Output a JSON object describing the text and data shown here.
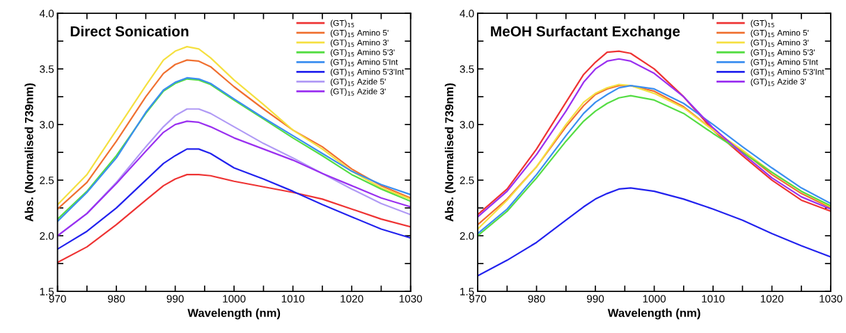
{
  "chart_data": [
    {
      "type": "line",
      "title": "Direct Sonication",
      "xlabel": "Wavelength (nm)",
      "ylabel": "Abs. (Normalised 739nm)",
      "xlim": [
        970,
        1030
      ],
      "ylim": [
        1.5,
        4.0
      ],
      "xticks": [
        970,
        {
          "value": 975,
          "label": null
        },
        980,
        {
          "value": 985,
          "label": null
        },
        990,
        {
          "value": 995,
          "label": null
        },
        1000,
        {
          "value": 1005,
          "label": null
        },
        1010,
        {
          "value": 1015,
          "label": null
        },
        1020,
        {
          "value": 1025,
          "label": null
        },
        1030
      ],
      "yticks": [
        {
          "value": 1.5,
          "label": "1.5"
        },
        {
          "value": 1.75,
          "label": null
        },
        {
          "value": 2.0,
          "label": "2.0"
        },
        {
          "value": 2.25,
          "label": null
        },
        {
          "value": 2.5,
          "label": "2.5"
        },
        {
          "value": 2.75,
          "label": null
        },
        {
          "value": 3.0,
          "label": "3.0"
        },
        {
          "value": 3.25,
          "label": null
        },
        {
          "value": 3.5,
          "label": "3.5"
        },
        {
          "value": 3.75,
          "label": null
        },
        {
          "value": 4.0,
          "label": "4.0"
        }
      ],
      "grid": false,
      "legend": "top right",
      "marker": "none",
      "line_style": "solid",
      "x": [
        970,
        975,
        980,
        985,
        988,
        990,
        992,
        994,
        996,
        1000,
        1005,
        1010,
        1015,
        1020,
        1025,
        1030
      ],
      "series": [
        {
          "name": "(GT)$_{15}$",
          "color": "#ee3333",
          "values": [
            1.76,
            1.9,
            2.1,
            2.32,
            2.45,
            2.51,
            2.55,
            2.55,
            2.54,
            2.49,
            2.44,
            2.39,
            2.33,
            2.24,
            2.15,
            2.08
          ]
        },
        {
          "name": "(GT)$_{15}$ Amino 5'",
          "color": "#f07030",
          "values": [
            2.24,
            2.48,
            2.85,
            3.25,
            3.46,
            3.54,
            3.58,
            3.57,
            3.52,
            3.34,
            3.14,
            2.95,
            2.8,
            2.6,
            2.45,
            2.34
          ]
        },
        {
          "name": "(GT)$_{15}$ Amino 3'",
          "color": "#f5e040",
          "values": [
            2.28,
            2.55,
            2.95,
            3.35,
            3.58,
            3.66,
            3.7,
            3.68,
            3.6,
            3.4,
            3.18,
            2.95,
            2.78,
            2.58,
            2.43,
            2.33
          ]
        },
        {
          "name": "(GT)$_{15}$ Amino 5'3'",
          "color": "#55dd44",
          "values": [
            2.15,
            2.4,
            2.72,
            3.1,
            3.3,
            3.37,
            3.41,
            3.4,
            3.36,
            3.22,
            3.05,
            2.88,
            2.72,
            2.55,
            2.42,
            2.31
          ]
        },
        {
          "name": "(GT)$_{15}$ Amino 5'Int",
          "color": "#3a8ef0",
          "values": [
            2.13,
            2.39,
            2.7,
            3.11,
            3.31,
            3.38,
            3.42,
            3.41,
            3.37,
            3.23,
            3.06,
            2.9,
            2.74,
            2.58,
            2.46,
            2.37
          ]
        },
        {
          "name": "(GT)$_{15}$ Amino 5'3'Int",
          "color": "#2222ee",
          "values": [
            1.88,
            2.04,
            2.25,
            2.5,
            2.65,
            2.72,
            2.78,
            2.78,
            2.74,
            2.61,
            2.51,
            2.4,
            2.28,
            2.17,
            2.06,
            1.98
          ]
        },
        {
          "name": "(GT)$_{15}$ Azide 5'",
          "color": "#b09af5",
          "values": [
            2.0,
            2.2,
            2.48,
            2.8,
            2.98,
            3.08,
            3.14,
            3.14,
            3.1,
            2.98,
            2.83,
            2.7,
            2.56,
            2.42,
            2.29,
            2.19
          ]
        },
        {
          "name": "(GT)$_{15}$ Azide 3'",
          "color": "#9a30f0",
          "values": [
            2.0,
            2.2,
            2.47,
            2.76,
            2.93,
            3.0,
            3.03,
            3.02,
            2.98,
            2.88,
            2.78,
            2.68,
            2.56,
            2.45,
            2.34,
            2.26
          ]
        }
      ]
    },
    {
      "type": "line",
      "title": "MeOH Surfactant Exchange",
      "xlabel": "Wavelength (nm)",
      "ylabel": "Abs. (Normalised 739nm)",
      "xlim": [
        970,
        1030
      ],
      "ylim": [
        1.5,
        4.0
      ],
      "xticks": [
        970,
        {
          "value": 975,
          "label": null
        },
        980,
        {
          "value": 985,
          "label": null
        },
        990,
        {
          "value": 995,
          "label": null
        },
        1000,
        {
          "value": 1005,
          "label": null
        },
        1010,
        {
          "value": 1015,
          "label": null
        },
        1020,
        {
          "value": 1025,
          "label": null
        },
        1030
      ],
      "yticks": [
        {
          "value": 1.5,
          "label": "1.5"
        },
        {
          "value": 1.75,
          "label": null
        },
        {
          "value": 2.0,
          "label": "2.0"
        },
        {
          "value": 2.25,
          "label": null
        },
        {
          "value": 2.5,
          "label": "2.5"
        },
        {
          "value": 2.75,
          "label": null
        },
        {
          "value": 3.0,
          "label": "3.0"
        },
        {
          "value": 3.25,
          "label": null
        },
        {
          "value": 3.5,
          "label": "3.5"
        },
        {
          "value": 3.75,
          "label": null
        },
        {
          "value": 4.0,
          "label": "4.0"
        }
      ],
      "grid": false,
      "legend": "top right",
      "marker": "none",
      "line_style": "solid",
      "x": [
        970,
        975,
        980,
        985,
        988,
        990,
        992,
        994,
        996,
        1000,
        1005,
        1010,
        1015,
        1020,
        1025,
        1030
      ],
      "series": [
        {
          "name": "(GT)$_{15}$",
          "color": "#ee3333",
          "values": [
            2.19,
            2.42,
            2.78,
            3.2,
            3.45,
            3.56,
            3.65,
            3.66,
            3.64,
            3.5,
            3.25,
            2.95,
            2.72,
            2.5,
            2.32,
            2.22
          ]
        },
        {
          "name": "(GT)$_{15}$ Amino 5'",
          "color": "#f07030",
          "values": [
            2.1,
            2.33,
            2.62,
            2.98,
            3.17,
            3.27,
            3.32,
            3.35,
            3.35,
            3.3,
            3.16,
            2.95,
            2.76,
            2.55,
            2.38,
            2.25
          ]
        },
        {
          "name": "(GT)$_{15}$ Amino 3'",
          "color": "#f5e040",
          "values": [
            2.06,
            2.32,
            2.62,
            3.0,
            3.2,
            3.28,
            3.33,
            3.36,
            3.35,
            3.28,
            3.15,
            2.95,
            2.77,
            2.57,
            2.4,
            2.26
          ]
        },
        {
          "name": "(GT)$_{15}$ Amino 5'3'",
          "color": "#55dd44",
          "values": [
            2.0,
            2.22,
            2.52,
            2.85,
            3.03,
            3.12,
            3.19,
            3.24,
            3.26,
            3.22,
            3.1,
            2.92,
            2.75,
            2.57,
            2.4,
            2.27
          ]
        },
        {
          "name": "(GT)$_{15}$ Amino 5'Int",
          "color": "#3a8ef0",
          "values": [
            2.02,
            2.24,
            2.55,
            2.9,
            3.1,
            3.2,
            3.27,
            3.33,
            3.35,
            3.32,
            3.19,
            3.0,
            2.8,
            2.61,
            2.43,
            2.29
          ]
        },
        {
          "name": "(GT)$_{15}$ Amino 5'3'Int",
          "color": "#2222ee",
          "values": [
            1.64,
            1.78,
            1.94,
            2.14,
            2.26,
            2.33,
            2.38,
            2.42,
            2.43,
            2.4,
            2.33,
            2.24,
            2.14,
            2.02,
            1.91,
            1.81
          ]
        },
        {
          "name": "(GT)$_{15}$ Azide 3'",
          "color": "#9a30f0",
          "values": [
            2.17,
            2.4,
            2.73,
            3.12,
            3.38,
            3.5,
            3.57,
            3.59,
            3.57,
            3.46,
            3.25,
            2.97,
            2.74,
            2.52,
            2.35,
            2.24
          ]
        }
      ]
    }
  ]
}
